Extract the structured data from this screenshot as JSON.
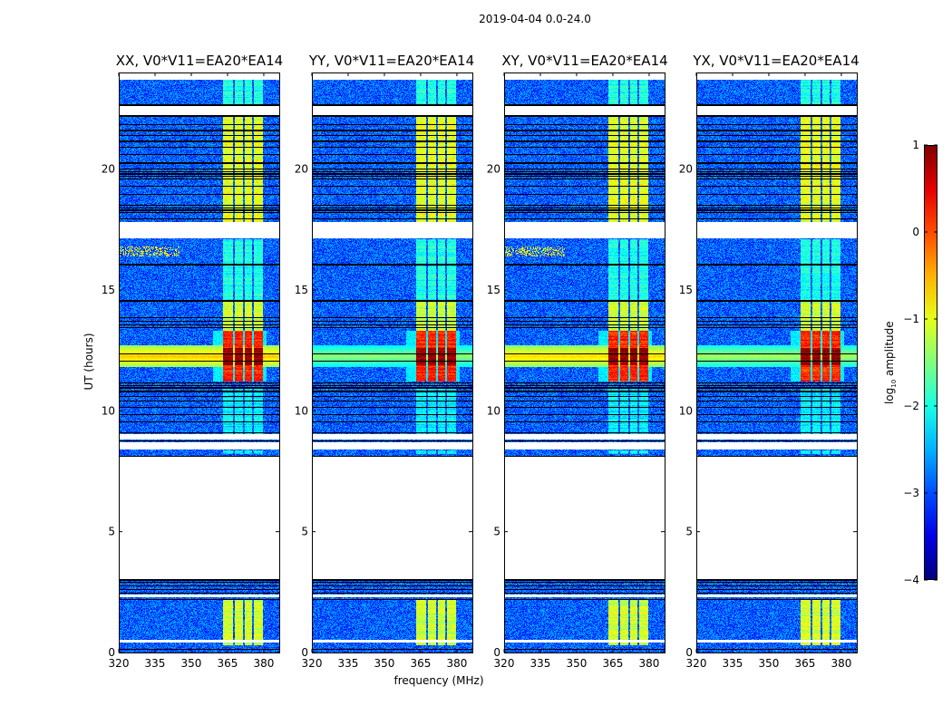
{
  "suptitle": "2019-04-04 0.0-24.0",
  "xlabel": "frequency (MHz)",
  "ylabel": "UT (hours)",
  "colorbar": {
    "label_parts": [
      "log",
      "10",
      " amplitude"
    ],
    "ticks": [
      1,
      0,
      -1,
      -2,
      -3,
      -4
    ],
    "tick_labels": [
      "1",
      "0",
      "−1",
      "−2",
      "−3",
      "−4"
    ],
    "range": [
      -4,
      1
    ],
    "colormap": "jet"
  },
  "chart_data": [
    {
      "type": "heatmap",
      "title": "XX, V0*V11=EA20*EA14",
      "pol": "XX",
      "xlim": [
        320,
        386.4
      ],
      "ylim": [
        0,
        24
      ],
      "xticks": [
        320,
        335,
        350,
        365,
        380
      ],
      "xtick_labels": [
        "320",
        "335",
        "350",
        "365",
        "380"
      ],
      "yticks": [
        0,
        5,
        10,
        15,
        20
      ],
      "ytick_labels": [
        "0",
        "5",
        "10",
        "15",
        "20"
      ],
      "low_freq_rfi": true,
      "broadband_level": -0.6
    },
    {
      "type": "heatmap",
      "title": "YY, V0*V11=EA20*EA14",
      "pol": "YY",
      "xlim": [
        320,
        386.4
      ],
      "ylim": [
        0,
        24
      ],
      "xticks": [
        320,
        335,
        350,
        365,
        380
      ],
      "xtick_labels": [
        "320",
        "335",
        "350",
        "365",
        "380"
      ],
      "yticks": [
        0,
        5,
        10,
        15,
        20
      ],
      "ytick_labels": [
        "0",
        "5",
        "10",
        "15",
        "20"
      ],
      "low_freq_rfi": false,
      "broadband_level": -1.4
    },
    {
      "type": "heatmap",
      "title": "XY, V0*V11=EA20*EA14",
      "pol": "XY",
      "xlim": [
        320,
        386.4
      ],
      "ylim": [
        0,
        24
      ],
      "xticks": [
        320,
        335,
        350,
        365,
        380
      ],
      "xtick_labels": [
        "320",
        "335",
        "350",
        "365",
        "380"
      ],
      "yticks": [
        0,
        5,
        10,
        15,
        20
      ],
      "ytick_labels": [
        "0",
        "5",
        "10",
        "15",
        "20"
      ],
      "low_freq_rfi": true,
      "broadband_level": -0.7
    },
    {
      "type": "heatmap",
      "title": "YX, V0*V11=EA20*EA14",
      "pol": "YX",
      "xlim": [
        320,
        386.4
      ],
      "ylim": [
        0,
        24
      ],
      "xticks": [
        320,
        335,
        350,
        365,
        380
      ],
      "xtick_labels": [
        "320",
        "335",
        "350",
        "365",
        "380"
      ],
      "yticks": [
        0,
        5,
        10,
        15,
        20
      ],
      "ytick_labels": [
        "0",
        "5",
        "10",
        "15",
        "20"
      ],
      "low_freq_rfi": false,
      "broadband_level": -1.3
    }
  ],
  "features": {
    "noise_floor_log10": -2.9,
    "rfi_channels_mhz": [
      [
        363,
        367.3
      ],
      [
        368,
        371.3
      ],
      [
        372,
        375.3
      ],
      [
        376,
        379.5
      ]
    ],
    "activity_hours": [
      {
        "from": 0.3,
        "to": 2.2,
        "level": -1.1
      },
      {
        "from": 8.2,
        "to": 8.35,
        "level": -2.2
      },
      {
        "from": 9.0,
        "to": 10.9,
        "level": -2.2
      },
      {
        "from": 11.2,
        "to": 13.3,
        "level": 0.2
      },
      {
        "from": 11.9,
        "to": 12.6,
        "level": 0.9
      },
      {
        "from": 13.3,
        "to": 14.6,
        "level": -1.1
      },
      {
        "from": 14.6,
        "to": 17.1,
        "level": -2.0
      },
      {
        "from": 17.8,
        "to": 22.2,
        "level": -1.0
      },
      {
        "from": 22.6,
        "to": 23.7,
        "level": -2.0
      }
    ],
    "broadband_hours": [
      11.8,
      12.7
    ],
    "gaps_hours": [
      [
        0.42,
        0.52
      ],
      [
        2.3,
        2.4
      ],
      [
        3.05,
        8.1
      ],
      [
        8.4,
        8.7
      ],
      [
        8.8,
        9.05
      ],
      [
        17.15,
        17.8
      ],
      [
        22.25,
        22.6
      ],
      [
        23.7,
        24
      ]
    ],
    "flagged_line_hours": [
      0.12,
      2.2,
      2.45,
      2.6,
      2.75,
      2.9,
      3.0,
      8.1,
      8.75,
      9.1,
      9.55,
      9.85,
      10.15,
      10.4,
      10.6,
      10.8,
      10.95,
      11.05,
      11.15,
      12.05,
      12.35,
      13.45,
      13.55,
      13.7,
      13.85,
      14.55,
      16.05,
      17.95,
      18.2,
      18.3,
      18.4,
      18.5,
      18.95,
      19.3,
      19.6,
      19.7,
      19.8,
      19.9,
      20.0,
      20.25,
      20.6,
      20.9,
      21.15,
      21.4,
      21.6,
      21.85,
      22.2,
      22.65
    ]
  }
}
